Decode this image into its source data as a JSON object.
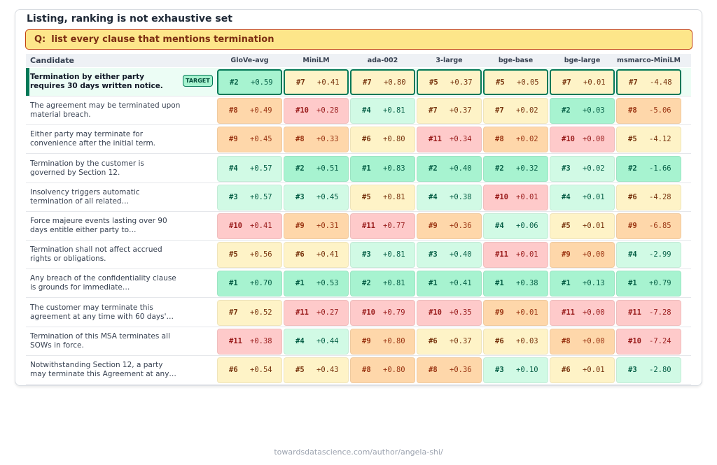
{
  "title": "Listing, ranking is not exhaustive set",
  "query": {
    "prefix": "Q:",
    "text": "list every clause that mentions termination"
  },
  "header": {
    "candidate_label": "Candidate"
  },
  "models": [
    "GloVe-avg",
    "MiniLM",
    "ada-002",
    "3-large",
    "bge-base",
    "bge-large",
    "msmarco-MiniLM"
  ],
  "target_badge": "TARGET",
  "colors": {
    "target_accent": "#047857",
    "query_bg": "#fde68a",
    "query_border": "#c2410c"
  },
  "rows": [
    {
      "candidate": "Termination by either party requires 30 days written notice.",
      "target": true,
      "cells": [
        {
          "rank": "#2",
          "score": "+0.59",
          "tier": "green"
        },
        {
          "rank": "#7",
          "score": "+0.41",
          "tier": "yellow"
        },
        {
          "rank": "#7",
          "score": "+0.80",
          "tier": "yellow"
        },
        {
          "rank": "#5",
          "score": "+0.37",
          "tier": "yellow"
        },
        {
          "rank": "#5",
          "score": "+0.05",
          "tier": "yellow"
        },
        {
          "rank": "#7",
          "score": "+0.01",
          "tier": "yellow"
        },
        {
          "rank": "#7",
          "score": "-4.48",
          "tier": "yellow"
        }
      ]
    },
    {
      "candidate": "The agreement may be terminated upon material breach.",
      "cells": [
        {
          "rank": "#8",
          "score": "+0.49",
          "tier": "orange"
        },
        {
          "rank": "#10",
          "score": "+0.28",
          "tier": "red"
        },
        {
          "rank": "#4",
          "score": "+0.81",
          "tier": "mint"
        },
        {
          "rank": "#7",
          "score": "+0.37",
          "tier": "yellow"
        },
        {
          "rank": "#7",
          "score": "+0.02",
          "tier": "yellow"
        },
        {
          "rank": "#2",
          "score": "+0.03",
          "tier": "green"
        },
        {
          "rank": "#8",
          "score": "-5.06",
          "tier": "orange"
        }
      ]
    },
    {
      "candidate": "Either party may terminate for convenience after the initial term.",
      "cells": [
        {
          "rank": "#9",
          "score": "+0.45",
          "tier": "orange"
        },
        {
          "rank": "#8",
          "score": "+0.33",
          "tier": "orange"
        },
        {
          "rank": "#6",
          "score": "+0.80",
          "tier": "yellow"
        },
        {
          "rank": "#11",
          "score": "+0.34",
          "tier": "red"
        },
        {
          "rank": "#8",
          "score": "+0.02",
          "tier": "orange"
        },
        {
          "rank": "#10",
          "score": "+0.00",
          "tier": "red"
        },
        {
          "rank": "#5",
          "score": "-4.12",
          "tier": "yellow"
        }
      ]
    },
    {
      "candidate": "Termination by the customer is governed by Section 12.",
      "cells": [
        {
          "rank": "#4",
          "score": "+0.57",
          "tier": "mint"
        },
        {
          "rank": "#2",
          "score": "+0.51",
          "tier": "green"
        },
        {
          "rank": "#1",
          "score": "+0.83",
          "tier": "green"
        },
        {
          "rank": "#2",
          "score": "+0.40",
          "tier": "green"
        },
        {
          "rank": "#2",
          "score": "+0.32",
          "tier": "green"
        },
        {
          "rank": "#3",
          "score": "+0.02",
          "tier": "mint"
        },
        {
          "rank": "#2",
          "score": "-1.66",
          "tier": "green"
        }
      ]
    },
    {
      "candidate": "Insolvency triggers automatic termination of all related…",
      "cells": [
        {
          "rank": "#3",
          "score": "+0.57",
          "tier": "mint"
        },
        {
          "rank": "#3",
          "score": "+0.45",
          "tier": "mint"
        },
        {
          "rank": "#5",
          "score": "+0.81",
          "tier": "yellow"
        },
        {
          "rank": "#4",
          "score": "+0.38",
          "tier": "mint"
        },
        {
          "rank": "#10",
          "score": "+0.01",
          "tier": "red"
        },
        {
          "rank": "#4",
          "score": "+0.01",
          "tier": "mint"
        },
        {
          "rank": "#6",
          "score": "-4.28",
          "tier": "yellow"
        }
      ]
    },
    {
      "candidate": "Force majeure events lasting over 90 days entitle either party to…",
      "cells": [
        {
          "rank": "#10",
          "score": "+0.41",
          "tier": "red"
        },
        {
          "rank": "#9",
          "score": "+0.31",
          "tier": "orange"
        },
        {
          "rank": "#11",
          "score": "+0.77",
          "tier": "red"
        },
        {
          "rank": "#9",
          "score": "+0.36",
          "tier": "orange"
        },
        {
          "rank": "#4",
          "score": "+0.06",
          "tier": "mint"
        },
        {
          "rank": "#5",
          "score": "+0.01",
          "tier": "yellow"
        },
        {
          "rank": "#9",
          "score": "-6.85",
          "tier": "orange"
        }
      ]
    },
    {
      "candidate": "Termination shall not affect accrued rights or obligations.",
      "cells": [
        {
          "rank": "#5",
          "score": "+0.56",
          "tier": "yellow"
        },
        {
          "rank": "#6",
          "score": "+0.41",
          "tier": "yellow"
        },
        {
          "rank": "#3",
          "score": "+0.81",
          "tier": "mint"
        },
        {
          "rank": "#3",
          "score": "+0.40",
          "tier": "mint"
        },
        {
          "rank": "#11",
          "score": "+0.01",
          "tier": "red"
        },
        {
          "rank": "#9",
          "score": "+0.00",
          "tier": "orange"
        },
        {
          "rank": "#4",
          "score": "-2.99",
          "tier": "mint"
        }
      ]
    },
    {
      "candidate": "Any breach of the confidentiality clause is grounds for immediate…",
      "cells": [
        {
          "rank": "#1",
          "score": "+0.70",
          "tier": "green"
        },
        {
          "rank": "#1",
          "score": "+0.53",
          "tier": "green"
        },
        {
          "rank": "#2",
          "score": "+0.81",
          "tier": "green"
        },
        {
          "rank": "#1",
          "score": "+0.41",
          "tier": "green"
        },
        {
          "rank": "#1",
          "score": "+0.38",
          "tier": "green"
        },
        {
          "rank": "#1",
          "score": "+0.13",
          "tier": "green"
        },
        {
          "rank": "#1",
          "score": "+0.79",
          "tier": "green"
        }
      ]
    },
    {
      "candidate": "The customer may terminate this agreement at any time with 60 days'…",
      "cells": [
        {
          "rank": "#7",
          "score": "+0.52",
          "tier": "yellow"
        },
        {
          "rank": "#11",
          "score": "+0.27",
          "tier": "red"
        },
        {
          "rank": "#10",
          "score": "+0.79",
          "tier": "red"
        },
        {
          "rank": "#10",
          "score": "+0.35",
          "tier": "red"
        },
        {
          "rank": "#9",
          "score": "+0.01",
          "tier": "orange"
        },
        {
          "rank": "#11",
          "score": "+0.00",
          "tier": "red"
        },
        {
          "rank": "#11",
          "score": "-7.28",
          "tier": "red"
        }
      ]
    },
    {
      "candidate": "Termination of this MSA terminates all SOWs in force.",
      "cells": [
        {
          "rank": "#11",
          "score": "+0.38",
          "tier": "red"
        },
        {
          "rank": "#4",
          "score": "+0.44",
          "tier": "mint"
        },
        {
          "rank": "#9",
          "score": "+0.80",
          "tier": "orange"
        },
        {
          "rank": "#6",
          "score": "+0.37",
          "tier": "yellow"
        },
        {
          "rank": "#6",
          "score": "+0.03",
          "tier": "yellow"
        },
        {
          "rank": "#8",
          "score": "+0.00",
          "tier": "orange"
        },
        {
          "rank": "#10",
          "score": "-7.24",
          "tier": "red"
        }
      ]
    },
    {
      "candidate": "Notwithstanding Section 12, a party may terminate this Agreement at any…",
      "cells": [
        {
          "rank": "#6",
          "score": "+0.54",
          "tier": "yellow"
        },
        {
          "rank": "#5",
          "score": "+0.43",
          "tier": "yellow"
        },
        {
          "rank": "#8",
          "score": "+0.80",
          "tier": "orange"
        },
        {
          "rank": "#8",
          "score": "+0.36",
          "tier": "orange"
        },
        {
          "rank": "#3",
          "score": "+0.10",
          "tier": "mint"
        },
        {
          "rank": "#6",
          "score": "+0.01",
          "tier": "yellow"
        },
        {
          "rank": "#3",
          "score": "-2.80",
          "tier": "mint"
        }
      ]
    }
  ],
  "footer": "towardsdatascience.com/author/angela-shi/"
}
